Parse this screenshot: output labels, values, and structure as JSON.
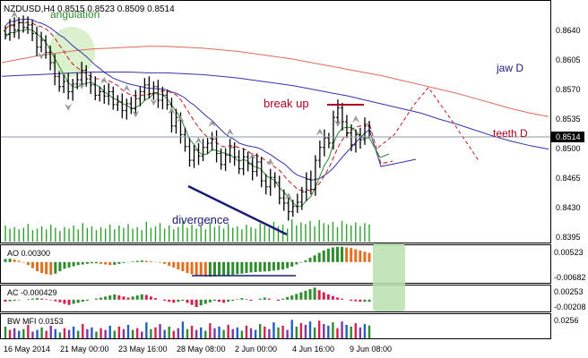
{
  "header": {
    "symbol_line": "NZDUSD,H4  0.8515 0.8523 0.8509 0.8514"
  },
  "colors": {
    "candle": "#000000",
    "jaw": "#3333aa",
    "teeth": "#e06a5a",
    "lips": "#2e8b2e",
    "ma_dash": "#c01818",
    "fractal": "#9a9a9a",
    "volume": "#2ea02e",
    "ao_up": "#2e8b2e",
    "ao_down": "#e07020",
    "ac_up": "#2e8b2e",
    "ac_down": "#d62050",
    "annotation_text": "#b00020",
    "divergence_line": "#1a1a7a",
    "highlight": "#b7e0b0"
  },
  "chart_data": [
    {
      "type": "candlestick",
      "panel": "price",
      "title": "NZDUSD,H4",
      "ohlc_last": {
        "open": 0.8515,
        "high": 0.8523,
        "low": 0.8509,
        "close": 0.8514
      },
      "current_price": "0.8514",
      "ylim": [
        0.8385,
        0.8665
      ],
      "y_ticks": [
        "0.8640",
        "0.8605",
        "0.8570",
        "0.8535",
        "0.8500",
        "0.8465",
        "0.8430",
        "0.8395"
      ],
      "x_ticks": [
        "16 May 2014",
        "21 May 00:00",
        "23 May 16:00",
        "28 May 08:00",
        "2 Jun 00:00",
        "4 Jun 16:00",
        "9 Jun 08:00"
      ],
      "closes": [
        0.8627,
        0.8637,
        0.8632,
        0.8641,
        0.8635,
        0.8638,
        0.8628,
        0.8612,
        0.862,
        0.8606,
        0.8594,
        0.8578,
        0.8566,
        0.8572,
        0.856,
        0.8569,
        0.8574,
        0.8585,
        0.8575,
        0.8568,
        0.8556,
        0.856,
        0.8555,
        0.856,
        0.8545,
        0.8548,
        0.8538,
        0.8546,
        0.854,
        0.8552,
        0.856,
        0.8568,
        0.8558,
        0.8566,
        0.855,
        0.8556,
        0.8545,
        0.852,
        0.853,
        0.851,
        0.8496,
        0.848,
        0.8492,
        0.8485,
        0.8495,
        0.85,
        0.8505,
        0.8488,
        0.8475,
        0.8486,
        0.8495,
        0.8484,
        0.847,
        0.8484,
        0.8476,
        0.8467,
        0.8478,
        0.8456,
        0.8449,
        0.846,
        0.8454,
        0.8436,
        0.843,
        0.842,
        0.8426,
        0.8431,
        0.8443,
        0.8458,
        0.8446,
        0.848,
        0.8495,
        0.8506,
        0.85,
        0.853,
        0.8541,
        0.8525,
        0.8512,
        0.8498,
        0.851,
        0.8504,
        0.852,
        0.8514
      ],
      "indicators": [
        {
          "name": "jaw D",
          "values": [
            0.8578,
            0.8579,
            0.858,
            0.8581,
            0.8582,
            0.8583,
            0.8583,
            0.8583,
            0.8582,
            0.8582,
            0.8581,
            0.858,
            0.8578,
            0.8576,
            0.8573,
            0.857,
            0.8567,
            0.8563,
            0.8559,
            0.8555,
            0.855,
            0.8545,
            0.854,
            0.8535,
            0.8528,
            0.8522,
            0.8515,
            0.8508,
            0.8502,
            0.8497,
            0.8493
          ]
        },
        {
          "name": "teeth D",
          "values": [
            0.8594,
            0.8598,
            0.8602,
            0.8605,
            0.8608,
            0.861,
            0.8611,
            0.8612,
            0.8613,
            0.8613,
            0.8612,
            0.8611,
            0.8609,
            0.8607,
            0.8604,
            0.8601,
            0.8598,
            0.8594,
            0.859,
            0.8586,
            0.8582,
            0.8578,
            0.8573,
            0.8568,
            0.8563,
            0.8558,
            0.8552,
            0.8546,
            0.854,
            0.8535,
            0.8531
          ]
        }
      ],
      "projection": [
        0.8495,
        0.851,
        0.8545,
        0.8565,
        0.8525,
        0.8478
      ],
      "annotations": [
        "break up",
        "divergence",
        "angulation",
        "jaw D",
        "teeth D"
      ]
    },
    {
      "type": "bar",
      "panel": "AO",
      "label": "AO 0.00300",
      "ylim": [
        -0.00682,
        0.00523
      ],
      "y_ticks": [
        "0.00523",
        "-0.00682"
      ],
      "values": [
        0.001,
        0.0011,
        0.0008,
        0.0004,
        -0.0002,
        -0.001,
        -0.002,
        -0.003,
        -0.0036,
        -0.004,
        -0.0042,
        -0.0038,
        -0.003,
        -0.0022,
        -0.0018,
        -0.0014,
        -0.001,
        -0.0008,
        -0.0006,
        -0.0004,
        -0.0004,
        -0.0006,
        -0.0008,
        -0.001,
        -0.0009,
        -0.0006,
        -0.0003,
        -0.0001,
        0.0002,
        0.0004,
        0.0005,
        0.0004,
        0.0003,
        0.0001,
        -0.0002,
        -0.0006,
        -0.0012,
        -0.0018,
        -0.0024,
        -0.003,
        -0.0036,
        -0.004,
        -0.0044,
        -0.0046,
        -0.0048,
        -0.0048,
        -0.0047,
        -0.0046,
        -0.0045,
        -0.0044,
        -0.0042,
        -0.004,
        -0.0038,
        -0.0036,
        -0.0034,
        -0.0033,
        -0.0032,
        -0.0031,
        -0.003,
        -0.0028,
        -0.0026,
        -0.0024,
        -0.002,
        -0.0015,
        -0.0008,
        -0.0002,
        0.0006,
        0.0014,
        0.0022,
        0.003,
        0.0038,
        0.0044,
        0.0048,
        0.005,
        0.005,
        0.0048,
        0.0046,
        0.0042,
        0.0038,
        0.0034,
        0.003
      ]
    },
    {
      "type": "bar",
      "panel": "AC",
      "label": "AC -0.000429",
      "ylim": [
        -0.00208,
        0.00253
      ],
      "y_ticks": [
        "0.00253",
        "-0.00208"
      ],
      "values": [
        -0.0004,
        -0.0003,
        -0.0002,
        -0.0001,
        0.0,
        0.0001,
        0.0002,
        0.0003,
        0.0002,
        0.0001,
        -0.0001,
        -0.0003,
        -0.0005,
        -0.0008,
        -0.001,
        -0.0008,
        -0.0006,
        -0.0004,
        -0.0002,
        0.0,
        0.0002,
        0.0004,
        0.0006,
        0.0008,
        0.001,
        0.0008,
        0.0006,
        0.0004,
        0.0006,
        0.0008,
        0.001,
        0.0009,
        0.0006,
        0.0003,
        0.0,
        -0.0002,
        -0.0004,
        -0.0006,
        -0.0004,
        -0.0002,
        -0.0006,
        -0.001,
        -0.0014,
        -0.0011,
        -0.0008,
        -0.0005,
        -0.0002,
        -0.0004,
        -0.0006,
        -0.0004,
        -0.0002,
        0.0001,
        0.0003,
        0.0001,
        -0.0002,
        0.0,
        0.0002,
        0.0004,
        0.0002,
        0.0,
        -0.0002,
        0.0002,
        0.0005,
        0.0008,
        0.0011,
        0.0014,
        0.0017,
        0.002,
        0.0023,
        0.0018,
        0.0014,
        0.001,
        0.0007,
        0.0004,
        0.0002,
        0.0,
        -0.0002,
        -0.0003,
        -0.0004,
        -0.0004,
        -0.0004
      ]
    },
    {
      "type": "bar",
      "panel": "BW MFI",
      "label": "BW MFI 0.0153",
      "ylim": [
        0,
        0.0256
      ],
      "y_ticks": [
        "0.0256"
      ],
      "values": [
        0.014,
        0.01,
        0.012,
        0.009,
        0.011,
        0.016,
        0.008,
        0.01,
        0.013,
        0.009,
        0.015,
        0.011,
        0.007,
        0.012,
        0.01,
        0.014,
        0.009,
        0.017,
        0.011,
        0.013,
        0.008,
        0.012,
        0.01,
        0.015,
        0.009,
        0.014,
        0.011,
        0.016,
        0.01,
        0.012,
        0.008,
        0.019,
        0.011,
        0.013,
        0.017,
        0.01,
        0.014,
        0.009,
        0.012,
        0.02,
        0.011,
        0.015,
        0.01,
        0.013,
        0.009,
        0.018,
        0.012,
        0.014,
        0.01,
        0.016,
        0.011,
        0.013,
        0.009,
        0.015,
        0.012,
        0.01,
        0.017,
        0.014,
        0.011,
        0.019,
        0.013,
        0.015,
        0.01,
        0.022,
        0.014,
        0.018,
        0.016,
        0.02,
        0.013,
        0.021,
        0.017,
        0.015,
        0.019,
        0.012,
        0.02,
        0.016,
        0.014,
        0.018,
        0.013,
        0.017,
        0.0153
      ]
    }
  ]
}
